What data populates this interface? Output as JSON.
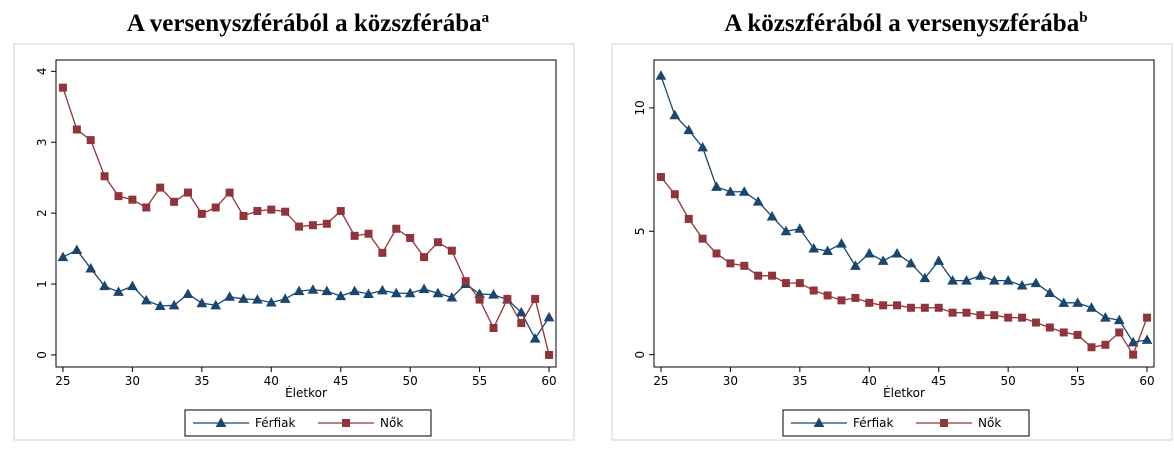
{
  "chart_data": [
    {
      "type": "line",
      "title": "A versenyszférából a közszférába",
      "title_note": "a",
      "xlabel": "Életkor",
      "x": [
        25,
        26,
        27,
        28,
        29,
        30,
        31,
        32,
        33,
        34,
        35,
        36,
        37,
        38,
        39,
        40,
        41,
        42,
        43,
        44,
        45,
        46,
        47,
        48,
        49,
        50,
        51,
        52,
        53,
        54,
        55,
        56,
        57,
        58,
        59,
        60
      ],
      "series": [
        {
          "name": "Férfiak",
          "color": "#1a476f",
          "marker": "triangle",
          "values": [
            1.38,
            1.48,
            1.22,
            0.97,
            0.89,
            0.97,
            0.77,
            0.69,
            0.7,
            0.86,
            0.73,
            0.7,
            0.82,
            0.79,
            0.78,
            0.74,
            0.79,
            0.9,
            0.92,
            0.9,
            0.83,
            0.9,
            0.86,
            0.91,
            0.87,
            0.87,
            0.93,
            0.87,
            0.81,
            1.0,
            0.86,
            0.85,
            0.78,
            0.6,
            0.23,
            0.53
          ]
        },
        {
          "name": "Nők",
          "color": "#90353b",
          "marker": "square",
          "values": [
            3.77,
            3.18,
            3.03,
            2.52,
            2.24,
            2.19,
            2.08,
            2.36,
            2.16,
            2.29,
            1.99,
            2.08,
            2.29,
            1.96,
            2.03,
            2.05,
            2.02,
            1.81,
            1.83,
            1.85,
            2.03,
            1.68,
            1.71,
            1.44,
            1.78,
            1.65,
            1.38,
            1.59,
            1.47,
            1.04,
            0.78,
            0.38,
            0.79,
            0.45,
            0.79,
            0.0
          ]
        }
      ],
      "xlim": [
        24.5,
        60.5
      ],
      "ylim": [
        -0.17,
        4.16
      ],
      "xticks": [
        25,
        30,
        35,
        40,
        45,
        50,
        55,
        60
      ],
      "yticks": [
        0,
        1,
        2,
        3,
        4
      ],
      "legend": "bottom"
    },
    {
      "type": "line",
      "title": "A közszférából a versenyszférába",
      "title_note": "b",
      "xlabel": "Életkor",
      "x": [
        25,
        26,
        27,
        28,
        29,
        30,
        31,
        32,
        33,
        34,
        35,
        36,
        37,
        38,
        39,
        40,
        41,
        42,
        43,
        44,
        45,
        46,
        47,
        48,
        49,
        50,
        51,
        52,
        53,
        54,
        55,
        56,
        57,
        58,
        59,
        60
      ],
      "series": [
        {
          "name": "Férfiak",
          "color": "#1a476f",
          "marker": "triangle",
          "values": [
            11.3,
            9.7,
            9.1,
            8.4,
            6.8,
            6.6,
            6.6,
            6.2,
            5.6,
            5.0,
            5.1,
            4.3,
            4.2,
            4.5,
            3.6,
            4.1,
            3.8,
            4.1,
            3.7,
            3.1,
            3.8,
            3.0,
            3.0,
            3.2,
            3.0,
            3.0,
            2.8,
            2.9,
            2.5,
            2.1,
            2.1,
            1.9,
            1.5,
            1.4,
            0.5,
            0.6
          ]
        },
        {
          "name": "Nők",
          "color": "#90353b",
          "marker": "square",
          "values": [
            7.2,
            6.5,
            5.5,
            4.7,
            4.1,
            3.7,
            3.6,
            3.2,
            3.2,
            2.9,
            2.9,
            2.6,
            2.4,
            2.2,
            2.3,
            2.1,
            2.0,
            2.0,
            1.9,
            1.9,
            1.9,
            1.7,
            1.7,
            1.6,
            1.6,
            1.5,
            1.5,
            1.3,
            1.1,
            0.9,
            0.8,
            0.3,
            0.4,
            0.9,
            0.0,
            1.5
          ]
        }
      ],
      "xlim": [
        24.5,
        60.5
      ],
      "ylim": [
        -0.5,
        11.94
      ],
      "xticks": [
        25,
        30,
        35,
        40,
        45,
        50,
        55,
        60
      ],
      "yticks": [
        0,
        5,
        10
      ],
      "legend": "bottom"
    }
  ]
}
